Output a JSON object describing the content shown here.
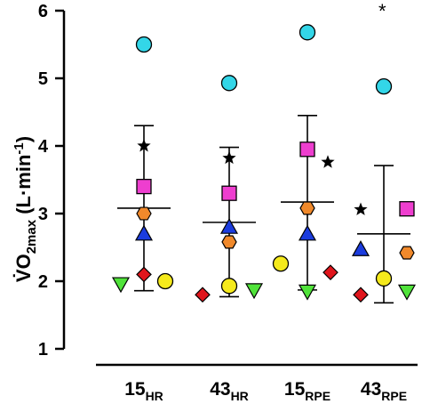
{
  "chart_data": {
    "type": "scatter",
    "ylabel": {
      "main": "V̇O",
      "sub": "2max",
      "unit_open": " (L·min",
      "unit_sup": "-1",
      "unit_close": ")"
    },
    "ylim": [
      1,
      6
    ],
    "yticks": [
      "1",
      "2",
      "3",
      "4",
      "5",
      "6"
    ],
    "grid": false,
    "categories": [
      {
        "main": "15",
        "sub": "HR"
      },
      {
        "main": "43",
        "sub": "HR"
      },
      {
        "main": "15",
        "sub": "RPE"
      },
      {
        "main": "43",
        "sub": "RPE"
      }
    ],
    "summary": [
      {
        "mean": 3.08,
        "sd_low": 1.86,
        "sd_high": 4.3
      },
      {
        "mean": 2.87,
        "sd_low": 1.77,
        "sd_high": 3.98
      },
      {
        "mean": 3.17,
        "sd_low": 1.87,
        "sd_high": 4.45
      },
      {
        "mean": 2.7,
        "sd_low": 1.68,
        "sd_high": 3.71
      }
    ],
    "series": [
      {
        "marker": "circle",
        "color": "#33d6e8",
        "values": [
          5.5,
          4.93,
          5.68,
          4.88
        ]
      },
      {
        "marker": "star",
        "color": "#000000",
        "values": [
          4.0,
          3.82,
          3.76,
          3.06
        ]
      },
      {
        "marker": "square",
        "color": "#ee3ecf",
        "values": [
          3.4,
          3.3,
          3.95,
          3.07
        ]
      },
      {
        "marker": "hexagon",
        "color": "#f0892b",
        "values": [
          3.0,
          2.58,
          3.08,
          2.42
        ]
      },
      {
        "marker": "triangle",
        "color": "#1b3cde",
        "values": [
          2.7,
          2.8,
          2.7,
          2.47
        ]
      },
      {
        "marker": "diamond",
        "color": "#e0151c",
        "values": [
          2.1,
          1.8,
          2.13,
          1.8
        ]
      },
      {
        "marker": "circle",
        "color": "#f5ea1c",
        "values": [
          2.0,
          1.93,
          2.26,
          2.04
        ]
      },
      {
        "marker": "tri-down",
        "color": "#50e33a",
        "values": [
          1.96,
          1.87,
          1.85,
          1.85
        ]
      }
    ],
    "annotation": {
      "text": "*",
      "category_index": 3
    }
  }
}
